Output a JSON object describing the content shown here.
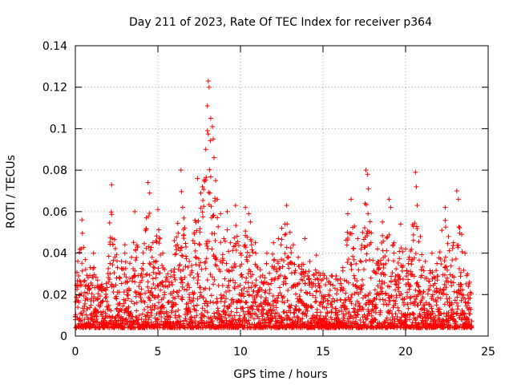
{
  "chart_data": {
    "type": "scatter",
    "title": "Day 211 of 2023, Rate Of TEC Index for receiver p364",
    "xlabel": "GPS time / hours",
    "ylabel": "ROTI / TECUs",
    "xlim": [
      0,
      25
    ],
    "ylim": [
      0,
      0.14
    ],
    "xticks": [
      0,
      5,
      10,
      15,
      20,
      25
    ],
    "xtick_labels": [
      "0",
      "5",
      "10",
      "15",
      "20",
      "25"
    ],
    "yticks": [
      0,
      0.02,
      0.04,
      0.06,
      0.08,
      0.1,
      0.12,
      0.14
    ],
    "ytick_labels": [
      "0",
      "0.02",
      "0.04",
      "0.06",
      "0.08",
      "0.1",
      "0.12",
      "0.14"
    ],
    "grid": true,
    "marker": "+",
    "color": "#ff0000",
    "series": [
      {
        "name": "ROTI",
        "points": [
          [
            0.2,
            0.029
          ],
          [
            0.4,
            0.056
          ],
          [
            0.6,
            0.024
          ],
          [
            0.9,
            0.033
          ],
          [
            1.1,
            0.04
          ],
          [
            1.6,
            0.025
          ],
          [
            2.1,
            0.035
          ],
          [
            2.2,
            0.073
          ],
          [
            2.5,
            0.028
          ],
          [
            2.8,
            0.036
          ],
          [
            3.0,
            0.044
          ],
          [
            3.4,
            0.038
          ],
          [
            3.6,
            0.06
          ],
          [
            4.0,
            0.03
          ],
          [
            4.3,
            0.057
          ],
          [
            4.4,
            0.074
          ],
          [
            4.5,
            0.069
          ],
          [
            4.7,
            0.045
          ],
          [
            5.0,
            0.061
          ],
          [
            5.3,
            0.04
          ],
          [
            5.6,
            0.03
          ],
          [
            6.0,
            0.046
          ],
          [
            6.4,
            0.08
          ],
          [
            6.5,
            0.062
          ],
          [
            6.9,
            0.036
          ],
          [
            7.2,
            0.05
          ],
          [
            7.4,
            0.076
          ],
          [
            7.6,
            0.069
          ],
          [
            7.7,
            0.072
          ],
          [
            7.9,
            0.09
          ],
          [
            8.0,
            0.111
          ],
          [
            8.05,
            0.123
          ],
          [
            8.1,
            0.12
          ],
          [
            8.2,
            0.105
          ],
          [
            8.3,
            0.101
          ],
          [
            8.35,
            0.095
          ],
          [
            8.4,
            0.086
          ],
          [
            8.5,
            0.075
          ],
          [
            8.6,
            0.066
          ],
          [
            8.8,
            0.059
          ],
          [
            9.0,
            0.047
          ],
          [
            9.2,
            0.06
          ],
          [
            9.4,
            0.045
          ],
          [
            9.7,
            0.063
          ],
          [
            10.0,
            0.04
          ],
          [
            10.3,
            0.062
          ],
          [
            10.5,
            0.059
          ],
          [
            10.6,
            0.055
          ],
          [
            10.9,
            0.045
          ],
          [
            11.2,
            0.032
          ],
          [
            11.6,
            0.04
          ],
          [
            12.0,
            0.045
          ],
          [
            12.3,
            0.047
          ],
          [
            12.5,
            0.052
          ],
          [
            12.7,
            0.054
          ],
          [
            12.8,
            0.063
          ],
          [
            13.0,
            0.05
          ],
          [
            13.2,
            0.044
          ],
          [
            13.5,
            0.038
          ],
          [
            13.9,
            0.047
          ],
          [
            14.2,
            0.036
          ],
          [
            14.6,
            0.039
          ],
          [
            15.0,
            0.03
          ],
          [
            15.4,
            0.026
          ],
          [
            15.8,
            0.029
          ],
          [
            16.2,
            0.033
          ],
          [
            16.5,
            0.059
          ],
          [
            16.7,
            0.066
          ],
          [
            16.9,
            0.053
          ],
          [
            17.1,
            0.047
          ],
          [
            17.4,
            0.05
          ],
          [
            17.6,
            0.08
          ],
          [
            17.7,
            0.078
          ],
          [
            17.75,
            0.071
          ],
          [
            17.9,
            0.045
          ],
          [
            18.3,
            0.042
          ],
          [
            18.6,
            0.055
          ],
          [
            19.0,
            0.066
          ],
          [
            19.1,
            0.062
          ],
          [
            19.3,
            0.045
          ],
          [
            19.7,
            0.054
          ],
          [
            20.0,
            0.042
          ],
          [
            20.3,
            0.041
          ],
          [
            20.6,
            0.079
          ],
          [
            20.65,
            0.072
          ],
          [
            20.7,
            0.063
          ],
          [
            20.9,
            0.048
          ],
          [
            21.2,
            0.036
          ],
          [
            21.6,
            0.04
          ],
          [
            21.9,
            0.035
          ],
          [
            22.2,
            0.051
          ],
          [
            22.4,
            0.062
          ],
          [
            22.6,
            0.048
          ],
          [
            22.9,
            0.045
          ],
          [
            23.1,
            0.07
          ],
          [
            23.2,
            0.066
          ],
          [
            23.4,
            0.049
          ],
          [
            23.6,
            0.04
          ],
          [
            23.8,
            0.024
          ]
        ]
      }
    ]
  }
}
